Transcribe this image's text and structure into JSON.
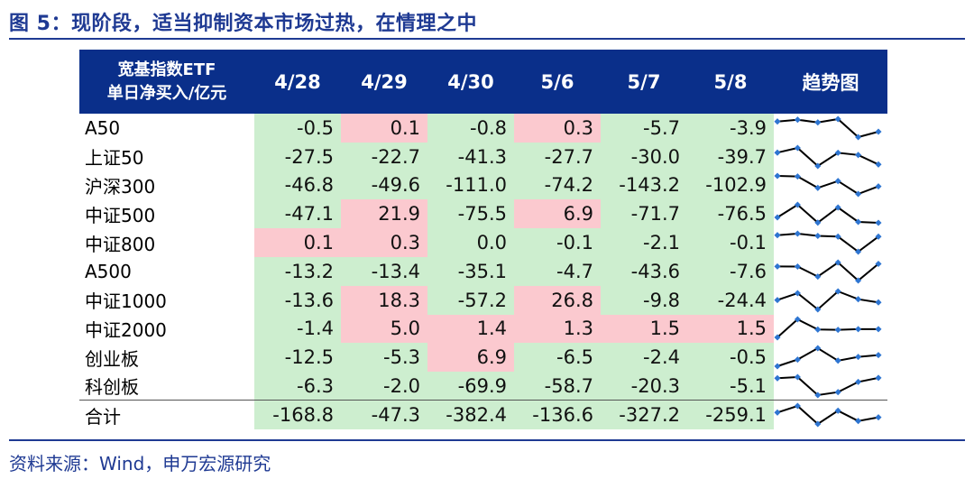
{
  "title": "图 5：现阶段，适当抑制资本市场过热，在情理之中",
  "source": "资料来源：Wind，申万宏源研究",
  "colors": {
    "header_bg": "#0a2f8a",
    "positive_bg": "#fbc9cf",
    "negative_bg": "#cdeecf",
    "spark_line": "#000000",
    "spark_marker": "#2e75d1"
  },
  "chart_data": {
    "type": "table",
    "header_line1": "宽基指数ETF",
    "header_line2": "单日净买入/亿元",
    "columns": [
      "4/28",
      "4/29",
      "4/30",
      "5/6",
      "5/7",
      "5/8"
    ],
    "trend_header": "趋势图",
    "rows": [
      {
        "name": "A50",
        "values": [
          -0.5,
          0.1,
          -0.8,
          0.3,
          -5.7,
          -3.9
        ]
      },
      {
        "name": "上证50",
        "values": [
          -27.5,
          -22.7,
          -41.3,
          -27.7,
          -30.0,
          -39.7
        ]
      },
      {
        "name": "沪深300",
        "values": [
          -46.8,
          -49.6,
          -111.0,
          -74.2,
          -143.2,
          -102.9
        ]
      },
      {
        "name": "中证500",
        "values": [
          -47.1,
          21.9,
          -75.5,
          6.9,
          -71.7,
          -76.5
        ]
      },
      {
        "name": "中证800",
        "values": [
          0.1,
          0.3,
          0.0,
          -0.1,
          -2.1,
          -0.1
        ]
      },
      {
        "name": "A500",
        "values": [
          -13.2,
          -13.4,
          -35.1,
          -4.7,
          -43.6,
          -7.6
        ]
      },
      {
        "name": "中证1000",
        "values": [
          -13.6,
          18.3,
          -57.2,
          26.8,
          -9.8,
          -24.4
        ]
      },
      {
        "name": "中证2000",
        "values": [
          -1.4,
          5.0,
          1.4,
          1.3,
          1.5,
          1.5
        ]
      },
      {
        "name": "创业板",
        "values": [
          -12.5,
          -5.3,
          6.9,
          -6.5,
          -2.4,
          -0.5
        ]
      },
      {
        "name": "科创板",
        "values": [
          -6.3,
          -2.0,
          -69.9,
          -58.7,
          -20.3,
          -5.1
        ]
      }
    ],
    "total": {
      "name": "合计",
      "values": [
        -168.8,
        -47.3,
        -382.4,
        -136.6,
        -327.2,
        -259.1
      ]
    }
  }
}
